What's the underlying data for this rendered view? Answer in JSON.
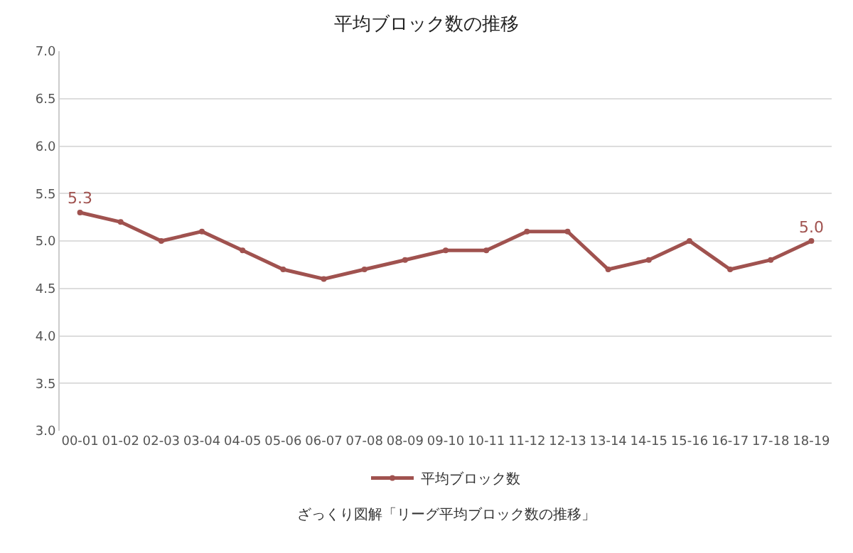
{
  "chart_data": {
    "type": "line",
    "title": "平均ブロック数の推移",
    "categories": [
      "00-01",
      "01-02",
      "02-03",
      "03-04",
      "04-05",
      "05-06",
      "06-07",
      "07-08",
      "08-09",
      "09-10",
      "10-11",
      "11-12",
      "12-13",
      "13-14",
      "14-15",
      "15-16",
      "16-17",
      "17-18",
      "18-19"
    ],
    "series": [
      {
        "name": "平均ブロック数",
        "color": "#a0524f",
        "values": [
          5.3,
          5.2,
          5.0,
          5.1,
          4.9,
          4.7,
          4.6,
          4.7,
          4.8,
          4.9,
          4.9,
          5.1,
          5.1,
          4.7,
          4.8,
          5.0,
          4.7,
          4.8,
          5.0
        ],
        "value_labels": [
          "5.3",
          null,
          null,
          null,
          null,
          null,
          null,
          null,
          null,
          null,
          null,
          null,
          null,
          null,
          null,
          null,
          null,
          null,
          "5.0"
        ]
      }
    ],
    "ylim": [
      3,
      7
    ],
    "yticks": [
      {
        "value": 3,
        "label": "3.0"
      },
      {
        "value": 3.5,
        "label": "3.5"
      },
      {
        "value": 4,
        "label": "4.0"
      },
      {
        "value": 4.5,
        "label": "4.5"
      },
      {
        "value": 5,
        "label": "5.0"
      },
      {
        "value": 5.5,
        "label": "5.5"
      },
      {
        "value": 6,
        "label": "6.0"
      },
      {
        "value": 6.5,
        "label": "6.5"
      },
      {
        "value": 7,
        "label": "7.0"
      }
    ],
    "grid": "y",
    "legend": "bottom",
    "marker": "circle",
    "line_style": "solid",
    "annotations": [
      "ざっくり図解「リーグ平均ブロック数の推移」"
    ]
  }
}
